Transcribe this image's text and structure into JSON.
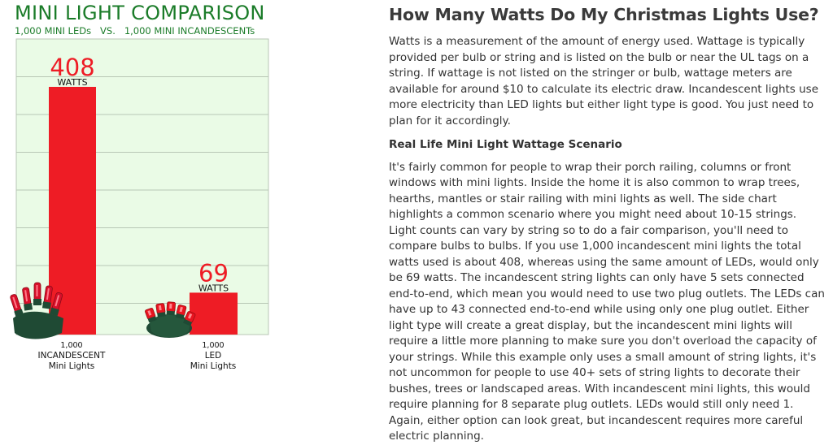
{
  "chart_data": {
    "type": "bar",
    "title": "MINI LIGHT COMPARISON",
    "subtitle": "1,000 MINI LEDs   VS.   1,000 MINI INCANDESCENTs",
    "categories": [
      {
        "count": "1,000",
        "name": "INCANDESCENT",
        "sub": "Mini Lights"
      },
      {
        "count": "1,000",
        "name": "LED",
        "sub": "Mini Lights"
      }
    ],
    "values": [
      408,
      69
    ],
    "value_unit": "WATTS",
    "value_labels": [
      "408",
      "69"
    ],
    "ylim": [
      0,
      420
    ],
    "grid": true
  },
  "colors": {
    "title_green": "#1b7c29",
    "bar_red": "#ee1c25",
    "plot_bg": "#eafbe6",
    "grid": "#b8c7b5",
    "bulb_base": "#1f4a34"
  },
  "icons": [
    "incandescent-light-string-icon",
    "led-light-string-icon"
  ],
  "article": {
    "heading": "How Many Watts Do My Christmas Lights Use?",
    "para1": "Watts is a measurement of the amount of energy used. Wattage is typically provided per bulb or string and is listed on the bulb or near the UL tags on a string. If wattage is not listed on the stringer or bulb, wattage meters are available for around $10 to calculate its electric draw. Incandescent lights use more electricity than LED lights but either light type is good. You just need to plan for it accordingly.",
    "subheading": "Real Life Mini Light Wattage Scenario",
    "para2": "It's fairly common for people to wrap their porch railing, columns or front windows with mini lights. Inside the home it is also common to wrap trees, hearths, mantles or stair railing with mini lights as well. The side chart highlights a common scenario where you might need about 10-15 strings. Light counts can vary by string so to do a fair comparison, you'll need to compare bulbs to bulbs. If you use 1,000 incandescent mini lights the total watts used is about 408, whereas using the same amount of LEDs, would only be 69 watts. The incandescent string lights can only have 5 sets connected end-to-end, which mean you would need to use two plug outlets. The LEDs can have up to 43 connected end-to-end while using only one plug outlet. Either light type will create a great display, but the incandescent mini lights will require a little more planning to make sure you don't overload the capacity of your strings. While this example only uses a small amount of string lights, it's not uncommon for people to use 40+ sets of string lights to decorate their bushes, trees or landscaped areas. With incandescent mini lights, this would require planning for 8 separate plug outlets. LEDs would still only need 1. Again, either option can look great, but incandescent requires more careful electric planning."
  }
}
